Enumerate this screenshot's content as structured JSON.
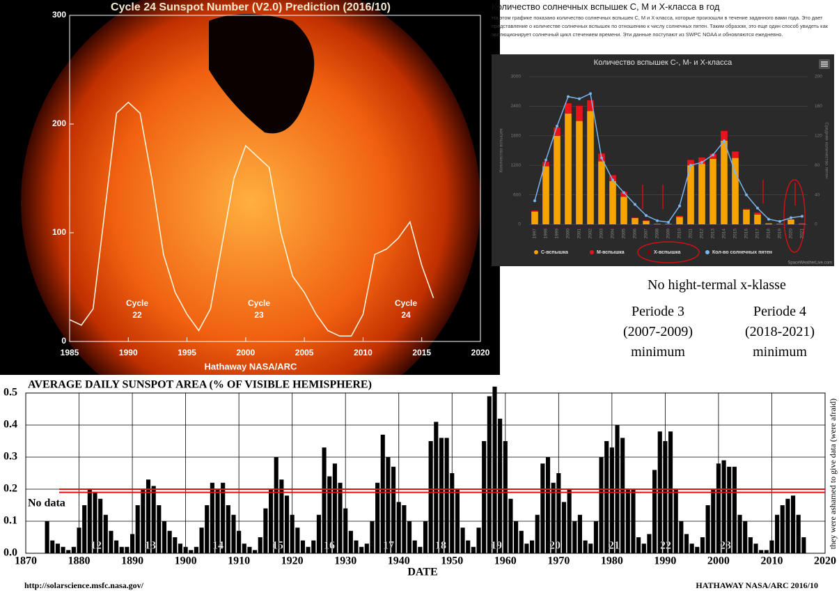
{
  "chart_data": [
    {
      "type": "line",
      "title": "Cycle 24 Sunspot Number (V2.0) Prediction (2016/10)",
      "credit": "Hathaway  NASA/ARC",
      "x": [
        1985,
        1986,
        1987,
        1988,
        1989,
        1990,
        1991,
        1992,
        1993,
        1994,
        1995,
        1996,
        1997,
        1998,
        1999,
        2000,
        2001,
        2002,
        2003,
        2004,
        2005,
        2006,
        2007,
        2008,
        2009,
        2010,
        2011,
        2012,
        2013,
        2014,
        2015,
        2016
      ],
      "values": [
        20,
        15,
        30,
        120,
        210,
        220,
        210,
        150,
        80,
        45,
        25,
        10,
        30,
        90,
        150,
        180,
        170,
        160,
        100,
        60,
        45,
        25,
        10,
        5,
        5,
        25,
        80,
        85,
        95,
        110,
        70,
        40
      ],
      "color": "#fff4dc",
      "xlim": [
        1985,
        2020
      ],
      "ylim": [
        0,
        300
      ],
      "xticks": [
        1985,
        1990,
        1995,
        2000,
        2005,
        2010,
        2015,
        2020
      ],
      "yticks": [
        0,
        100,
        200,
        300
      ],
      "cycle_labels": [
        [
          "Cycle",
          "22"
        ],
        [
          "Cycle",
          "23"
        ],
        [
          "Cycle",
          "24"
        ]
      ]
    },
    {
      "type": "bar",
      "stacked": true,
      "title": "Количество вспышек С-, М- и Х-класса",
      "credit": "SpaceWeatherLive.com",
      "ylabel": "Количество вспышек",
      "y2label": "Среднее количество пятен",
      "categories": [
        "1997",
        "1998",
        "1999",
        "2000",
        "2001",
        "2002",
        "2003",
        "2004",
        "2005",
        "2006",
        "2007",
        "2008",
        "2009",
        "2010",
        "2011",
        "2012",
        "2013",
        "2014",
        "2015",
        "2016",
        "2017",
        "2018",
        "2019",
        "2020",
        "2021"
      ],
      "series": [
        {
          "name": "С-вспышка",
          "color": "#f7a400",
          "values": [
            260,
            1180,
            1800,
            2250,
            2100,
            2300,
            1280,
            880,
            560,
            130,
            70,
            10,
            10,
            150,
            1200,
            1230,
            1330,
            1700,
            1350,
            300,
            200,
            20,
            10,
            100,
            10
          ]
        },
        {
          "name": "М-вспышка",
          "color": "#e8141b",
          "values": [
            20,
            90,
            170,
            210,
            310,
            220,
            160,
            120,
            100,
            10,
            10,
            1,
            0,
            23,
            110,
            130,
            100,
            200,
            130,
            16,
            40,
            0,
            0,
            2,
            10
          ]
        },
        {
          "name": "Х-вспышка",
          "color": "#7a0a0a",
          "values": [
            3,
            14,
            4,
            17,
            20,
            12,
            20,
            11,
            18,
            4,
            0,
            0,
            0,
            0,
            8,
            7,
            12,
            16,
            2,
            0,
            4,
            0,
            0,
            0,
            2
          ]
        },
        {
          "name": "Кол-во солнечных пятен",
          "color": "#7cb5ec",
          "axis": "y2",
          "values": [
            32,
            87,
            133,
            173,
            170,
            177,
            90,
            60,
            43,
            27,
            12,
            5,
            3,
            25,
            80,
            84,
            94,
            113,
            70,
            40,
            22,
            7,
            4,
            9,
            11
          ]
        }
      ],
      "ylim": [
        0,
        3000
      ],
      "yticks": [
        0,
        600,
        1200,
        1800,
        2400,
        3000
      ],
      "y2lim": [
        0,
        200
      ],
      "y2ticks": [
        0,
        40,
        80,
        120,
        160,
        200
      ],
      "grid": true
    },
    {
      "type": "bar",
      "title": "AVERAGE DAILY SUNSPOT AREA (% OF VISIBLE HEMISPHERE)",
      "xlabel": "DATE",
      "credit_left": "http://solarscience.msfc.nasa.gov/",
      "credit_right": "HATHAWAY   NASA/ARC   2016/10",
      "side_note": "they were ashamed to give data (were afraid)",
      "no_data_label": "No data",
      "x": [
        1874,
        1875,
        1876,
        1877,
        1878,
        1879,
        1880,
        1881,
        1882,
        1883,
        1884,
        1885,
        1886,
        1887,
        1888,
        1889,
        1890,
        1891,
        1892,
        1893,
        1894,
        1895,
        1896,
        1897,
        1898,
        1899,
        1900,
        1901,
        1902,
        1903,
        1904,
        1905,
        1906,
        1907,
        1908,
        1909,
        1910,
        1911,
        1912,
        1913,
        1914,
        1915,
        1916,
        1917,
        1918,
        1919,
        1920,
        1921,
        1922,
        1923,
        1924,
        1925,
        1926,
        1927,
        1928,
        1929,
        1930,
        1931,
        1932,
        1933,
        1934,
        1935,
        1936,
        1937,
        1938,
        1939,
        1940,
        1941,
        1942,
        1943,
        1944,
        1945,
        1946,
        1947,
        1948,
        1949,
        1950,
        1951,
        1952,
        1953,
        1954,
        1955,
        1956,
        1957,
        1958,
        1959,
        1960,
        1961,
        1962,
        1963,
        1964,
        1965,
        1966,
        1967,
        1968,
        1969,
        1970,
        1971,
        1972,
        1973,
        1974,
        1975,
        1976,
        1977,
        1978,
        1979,
        1980,
        1981,
        1982,
        1983,
        1984,
        1985,
        1986,
        1987,
        1988,
        1989,
        1990,
        1991,
        1992,
        1993,
        1994,
        1995,
        1996,
        1997,
        1998,
        1999,
        2000,
        2001,
        2002,
        2003,
        2004,
        2005,
        2006,
        2007,
        2008,
        2009,
        2010,
        2011,
        2012,
        2013,
        2014,
        2015,
        2016
      ],
      "values": [
        0.1,
        0.04,
        0.03,
        0.02,
        0.01,
        0.02,
        0.08,
        0.15,
        0.2,
        0.19,
        0.17,
        0.12,
        0.07,
        0.04,
        0.02,
        0.02,
        0.06,
        0.15,
        0.2,
        0.23,
        0.21,
        0.15,
        0.1,
        0.07,
        0.05,
        0.03,
        0.02,
        0.01,
        0.02,
        0.08,
        0.15,
        0.22,
        0.2,
        0.22,
        0.15,
        0.12,
        0.07,
        0.03,
        0.02,
        0.01,
        0.05,
        0.14,
        0.2,
        0.3,
        0.23,
        0.18,
        0.12,
        0.08,
        0.04,
        0.02,
        0.04,
        0.12,
        0.33,
        0.24,
        0.28,
        0.22,
        0.14,
        0.07,
        0.04,
        0.02,
        0.03,
        0.1,
        0.22,
        0.37,
        0.3,
        0.27,
        0.16,
        0.15,
        0.1,
        0.04,
        0.02,
        0.1,
        0.35,
        0.41,
        0.36,
        0.36,
        0.25,
        0.2,
        0.08,
        0.04,
        0.02,
        0.08,
        0.35,
        0.49,
        0.52,
        0.42,
        0.35,
        0.17,
        0.1,
        0.07,
        0.03,
        0.04,
        0.12,
        0.28,
        0.3,
        0.22,
        0.25,
        0.16,
        0.2,
        0.1,
        0.12,
        0.04,
        0.03,
        0.1,
        0.3,
        0.35,
        0.33,
        0.4,
        0.36,
        0.2,
        0.2,
        0.05,
        0.03,
        0.06,
        0.26,
        0.38,
        0.35,
        0.38,
        0.2,
        0.1,
        0.06,
        0.03,
        0.02,
        0.05,
        0.15,
        0.2,
        0.28,
        0.29,
        0.27,
        0.27,
        0.12,
        0.1,
        0.05,
        0.03,
        0.01,
        0.01,
        0.04,
        0.12,
        0.15,
        0.17,
        0.18,
        0.12,
        0.05
      ],
      "color": "#000000",
      "xlim": [
        1870,
        2020
      ],
      "ylim": [
        0,
        0.5
      ],
      "xticks": [
        1870,
        1880,
        1890,
        1900,
        1910,
        1920,
        1930,
        1940,
        1950,
        1960,
        1970,
        1980,
        1990,
        2000,
        2010,
        2020
      ],
      "yticks": [
        {
          "value": 0,
          "label": "0.0"
        },
        0.1,
        0.2,
        0.3,
        0.4,
        0.5
      ],
      "grid": true,
      "reference_lines": [
        0.2,
        0.19
      ],
      "reference_color": "#e01010",
      "cycle_labels": [
        "12",
        "13",
        "14",
        "15",
        "16",
        "17",
        "18",
        "19",
        "20",
        "21",
        "22",
        "23"
      ]
    }
  ],
  "info_panel": {
    "heading": "Количество солнечных вспышек С, М и Х-класса в год",
    "text": "На этом графике показано количество солнечных вспышек С, М и Х-класса, которые произошли в течение заданного вами года. Это дает представление о количестве солнечных вспышек по отношению к числу солнечных пятен. Таким образом, это еще один способ увидеть как эволюционирует солнечный цикл стечением времени. Эти данные поступают из SWPC NOAA и обновляются ежедневно."
  },
  "annotations": [
    [
      "No hight-termal x-klasse"
    ],
    [
      "Periode 3",
      "(2007-2009)",
      "minimum"
    ],
    [
      "Periode 4",
      "(2018-2021)",
      "minimum"
    ]
  ]
}
